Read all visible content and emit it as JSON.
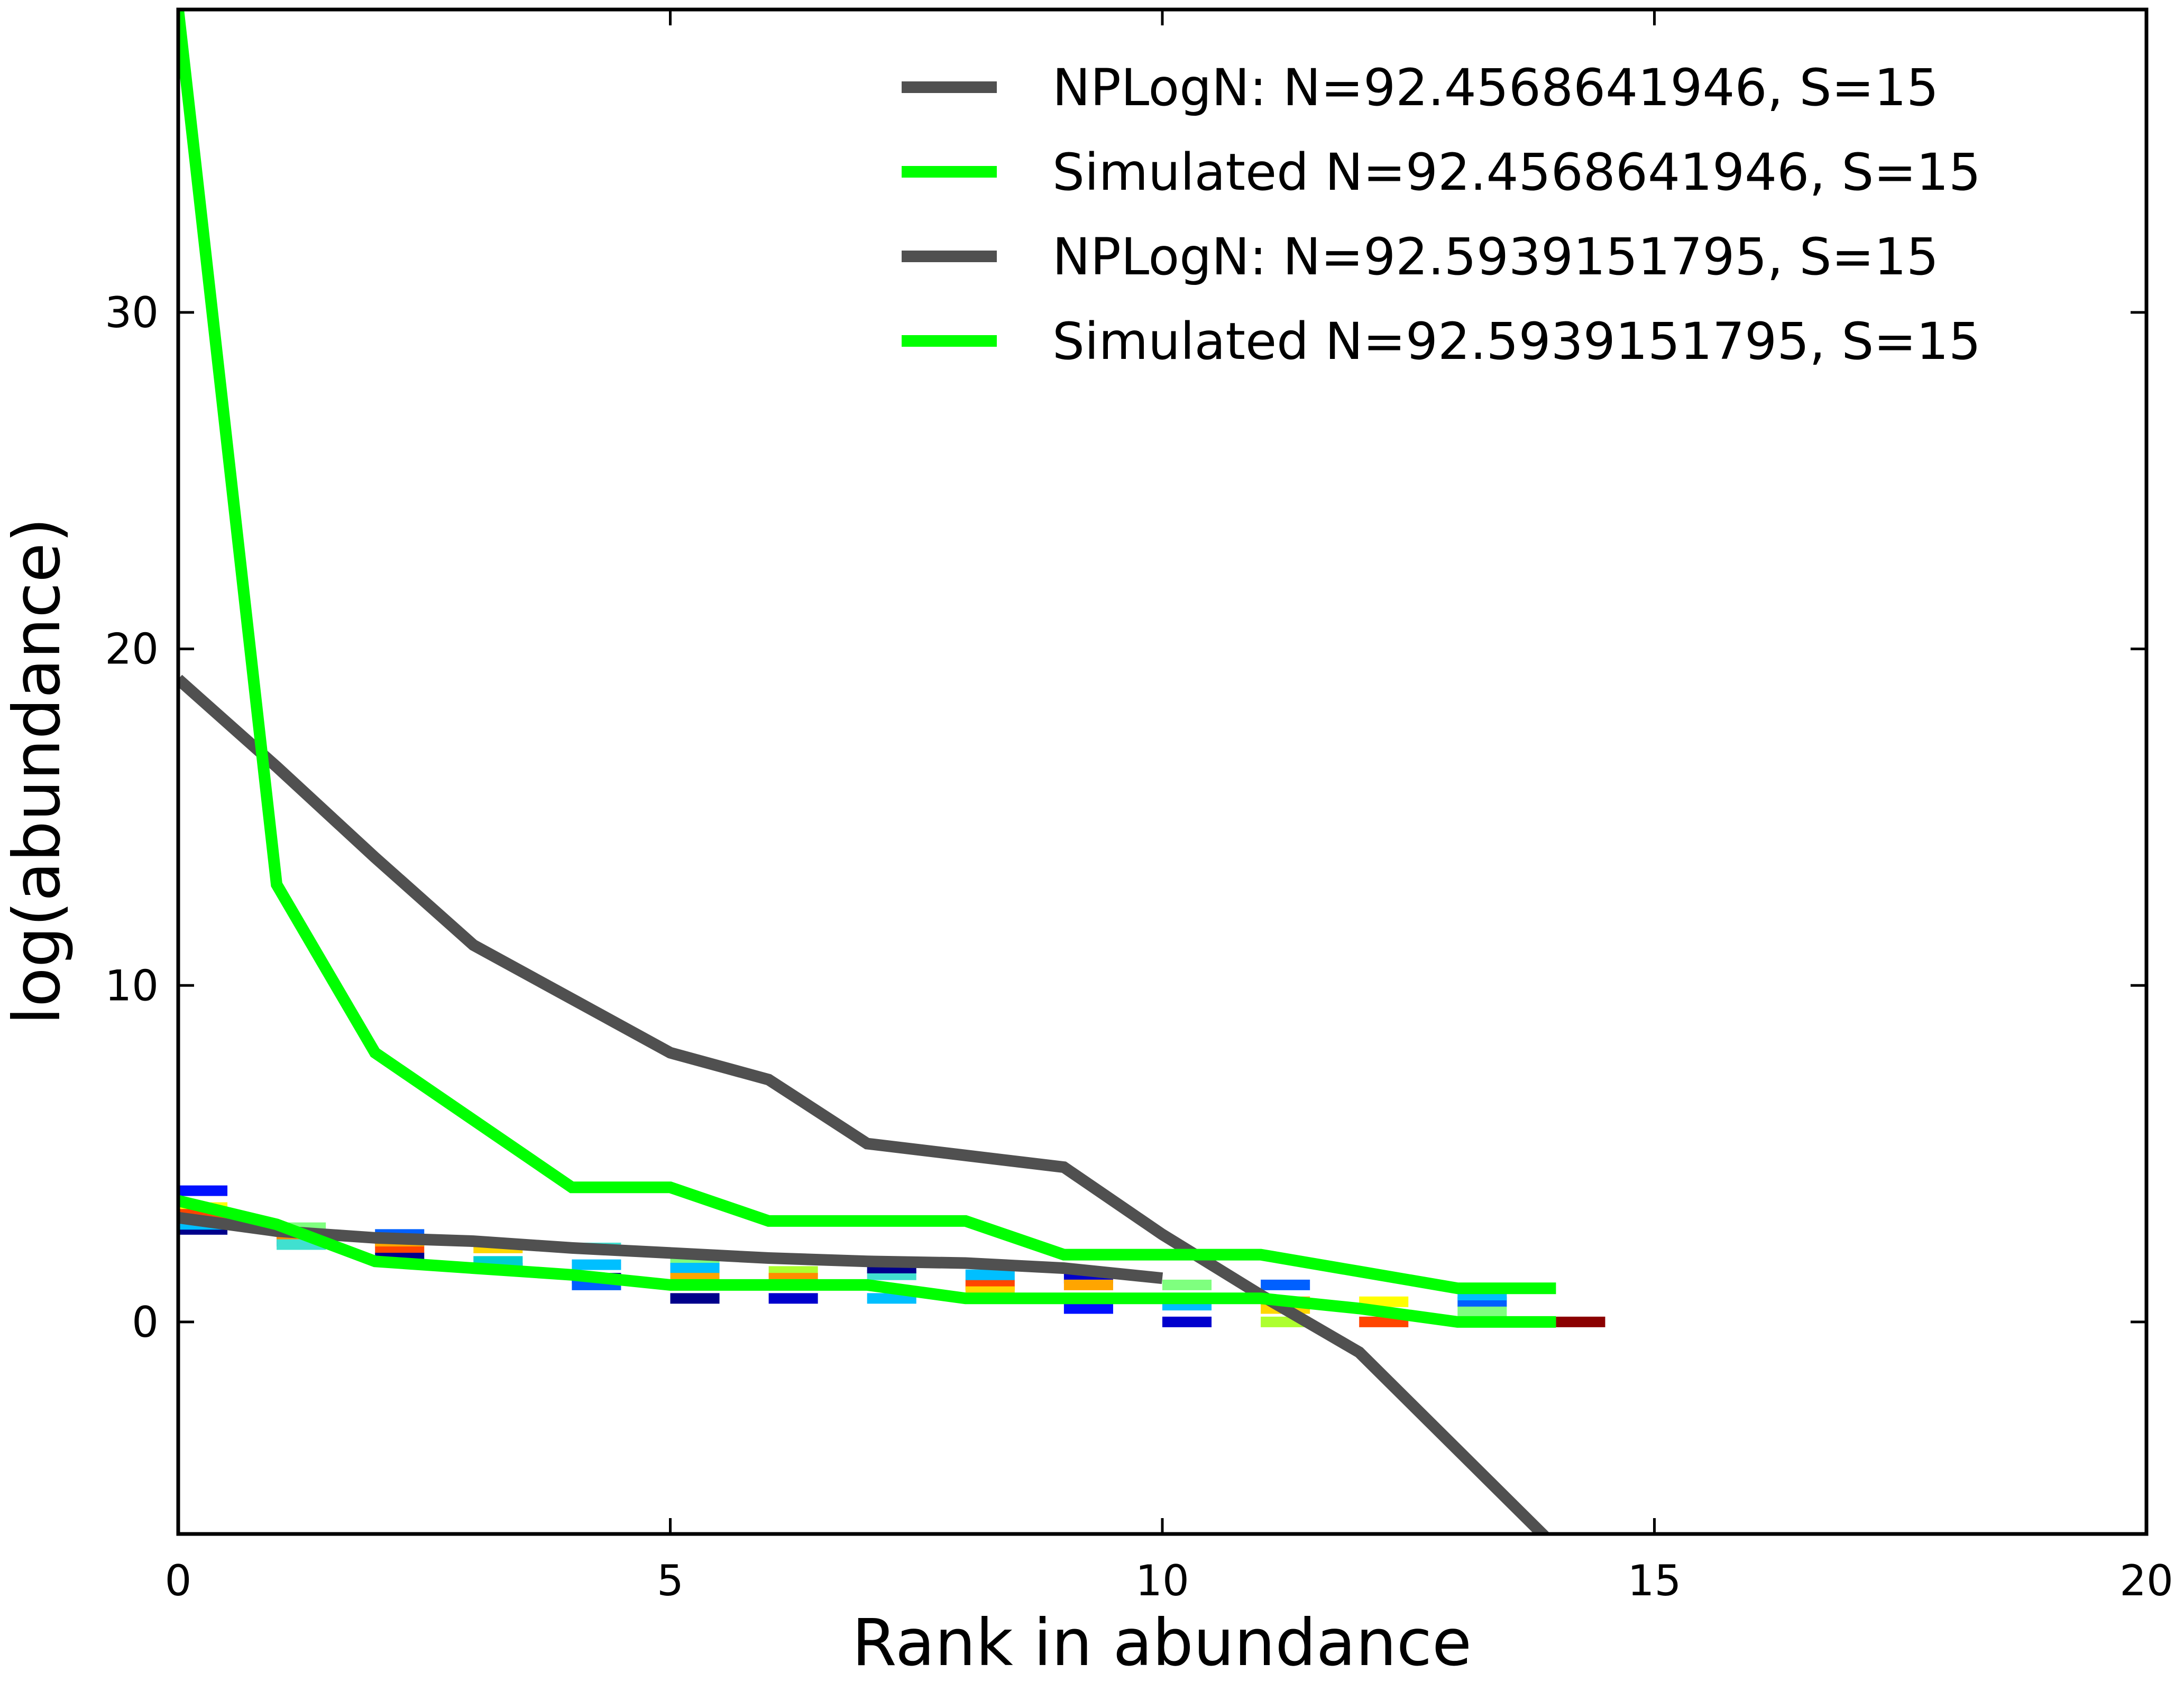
{
  "chart_data": {
    "type": "line",
    "xlabel": "Rank in abundance",
    "ylabel": "log(abundance)",
    "xlim": [
      0,
      20
    ],
    "ylim": [
      -6.3,
      39
    ],
    "xticks": [
      0,
      5,
      10,
      15,
      20
    ],
    "yticks": [
      0,
      10,
      20,
      30
    ],
    "grid": false,
    "legend_position": "top-right",
    "series": [
      {
        "name": "NPLogN: N=92.4568641946, S=15",
        "color": "#505050",
        "x": [
          0,
          1,
          2,
          3,
          4,
          5,
          6,
          7,
          8,
          9,
          10,
          11,
          12,
          13,
          14
        ],
        "y": [
          19.1,
          16.5,
          13.8,
          11.2,
          9.6,
          8.0,
          7.2,
          5.3,
          4.95,
          4.6,
          2.6,
          0.8,
          -0.9,
          -3.8,
          -6.7
        ]
      },
      {
        "name": "Simulated N=92.4568641946, S=15",
        "color": "#00ff00",
        "x": [
          0,
          1,
          2,
          3,
          4,
          5,
          6,
          7,
          8,
          9,
          10,
          11,
          12,
          13,
          14
        ],
        "y": [
          39,
          13.0,
          8.0,
          6.0,
          4.0,
          4.0,
          3.0,
          3.0,
          3.0,
          2.0,
          2.0,
          2.0,
          1.5,
          1.0,
          1.0
        ]
      },
      {
        "name": "NPLogN: N=92.5939151795, S=15",
        "color": "#505050",
        "x": [
          0,
          1,
          2,
          3,
          4,
          5,
          6,
          7,
          8,
          9,
          10
        ],
        "y": [
          3.1,
          2.7,
          2.5,
          2.4,
          2.2,
          2.05,
          1.9,
          1.8,
          1.75,
          1.6,
          1.3
        ]
      },
      {
        "name": "Simulated N=92.5939151795, S=15",
        "color": "#00ff00",
        "x": [
          0,
          1,
          2,
          3,
          4,
          5,
          6,
          7,
          8,
          9,
          10,
          11,
          12,
          13,
          14
        ],
        "y": [
          3.6,
          2.9,
          1.8,
          1.6,
          1.4,
          1.1,
          1.1,
          1.1,
          0.7,
          0.7,
          0.7,
          0.7,
          0.4,
          0.0,
          0.0
        ]
      }
    ],
    "background_segments": [
      {
        "x": 0,
        "y": 3.9,
        "color": "#0010ff"
      },
      {
        "x": 0,
        "y": 3.4,
        "color": "#ffff00"
      },
      {
        "x": 0,
        "y": 3.0,
        "color": "#ffa500"
      },
      {
        "x": 0,
        "y": 2.75,
        "color": "#00008b"
      },
      {
        "x": 0,
        "y": 3.2,
        "color": "#ff4500"
      },
      {
        "x": 0,
        "y": 2.9,
        "color": "#00bfff"
      },
      {
        "x": 1,
        "y": 2.4,
        "color": "#00008b"
      },
      {
        "x": 1,
        "y": 2.6,
        "color": "#ff8c00"
      },
      {
        "x": 1,
        "y": 2.8,
        "color": "#7fff7f"
      },
      {
        "x": 1,
        "y": 2.3,
        "color": "#40e0d0"
      },
      {
        "x": 2,
        "y": 2.6,
        "color": "#0060ff"
      },
      {
        "x": 2,
        "y": 2.2,
        "color": "#ff4500"
      },
      {
        "x": 2,
        "y": 1.9,
        "color": "#00008b"
      },
      {
        "x": 2,
        "y": 2.4,
        "color": "#ffa500"
      },
      {
        "x": 3,
        "y": 2.2,
        "color": "#ffd700"
      },
      {
        "x": 3,
        "y": 1.6,
        "color": "#0000cd"
      },
      {
        "x": 3,
        "y": 1.8,
        "color": "#00ced1"
      },
      {
        "x": 4,
        "y": 2.2,
        "color": "#40e0d0"
      },
      {
        "x": 4,
        "y": 1.7,
        "color": "#00bfff"
      },
      {
        "x": 4,
        "y": 1.3,
        "color": "#00008b"
      },
      {
        "x": 4,
        "y": 1.1,
        "color": "#0060ff"
      },
      {
        "x": 5,
        "y": 1.8,
        "color": "#7fff7f"
      },
      {
        "x": 5,
        "y": 1.6,
        "color": "#00bfff"
      },
      {
        "x": 5,
        "y": 0.7,
        "color": "#00008b"
      },
      {
        "x": 5,
        "y": 1.3,
        "color": "#ffa500"
      },
      {
        "x": 6,
        "y": 1.5,
        "color": "#adff2f"
      },
      {
        "x": 6,
        "y": 1.3,
        "color": "#ff8c00"
      },
      {
        "x": 6,
        "y": 0.7,
        "color": "#0000cd"
      },
      {
        "x": 7,
        "y": 1.4,
        "color": "#40e0d0"
      },
      {
        "x": 7,
        "y": 0.7,
        "color": "#00bfff"
      },
      {
        "x": 7,
        "y": 1.6,
        "color": "#00008b"
      },
      {
        "x": 8,
        "y": 1.1,
        "color": "#ff4500"
      },
      {
        "x": 8,
        "y": 1.4,
        "color": "#00bfff"
      },
      {
        "x": 8,
        "y": 0.9,
        "color": "#ffd700"
      },
      {
        "x": 9,
        "y": 1.3,
        "color": "#0000cd"
      },
      {
        "x": 9,
        "y": 1.1,
        "color": "#ffa500"
      },
      {
        "x": 9,
        "y": 0.4,
        "color": "#0010ff"
      },
      {
        "x": 10,
        "y": 0.0,
        "color": "#0000cd"
      },
      {
        "x": 10,
        "y": 1.1,
        "color": "#7fff7f"
      },
      {
        "x": 10,
        "y": 0.5,
        "color": "#00bfff"
      },
      {
        "x": 11,
        "y": 1.1,
        "color": "#0060ff"
      },
      {
        "x": 11,
        "y": 0.0,
        "color": "#adff2f"
      },
      {
        "x": 11,
        "y": 0.6,
        "color": "#ffa500"
      },
      {
        "x": 11,
        "y": 0.4,
        "color": "#ffd700"
      },
      {
        "x": 12,
        "y": 0.0,
        "color": "#ff4500"
      },
      {
        "x": 12,
        "y": 0.6,
        "color": "#ffff00"
      },
      {
        "x": 13,
        "y": 0.6,
        "color": "#0060ff"
      },
      {
        "x": 13,
        "y": 0.8,
        "color": "#00bfff"
      },
      {
        "x": 13,
        "y": 0.3,
        "color": "#7fff7f"
      },
      {
        "x": 14,
        "y": 0.0,
        "color": "#8b0000"
      }
    ]
  }
}
